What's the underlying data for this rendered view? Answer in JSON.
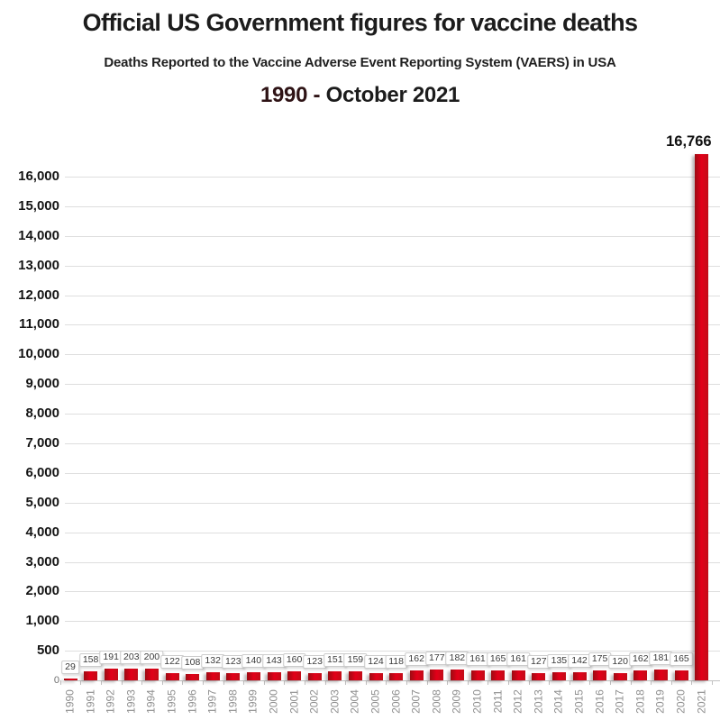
{
  "chart_data": {
    "type": "bar",
    "title": "Official US Government figures for vaccine deaths",
    "subtitle": "Deaths Reported to the Vaccine Adverse Event Reporting System (VAERS) in USA",
    "period_start": "1990",
    "period_separator": " - ",
    "period_end": "October 2021",
    "xlabel": "",
    "ylabel": "",
    "categories": [
      "1990",
      "1991",
      "1992",
      "1993",
      "1994",
      "1995",
      "1996",
      "1997",
      "1998",
      "1999",
      "2000",
      "2001",
      "2002",
      "2003",
      "2004",
      "2005",
      "2006",
      "2007",
      "2008",
      "2009",
      "2010",
      "2011",
      "2012",
      "2013",
      "2014",
      "2015",
      "2016",
      "2017",
      "2018",
      "2019",
      "2020",
      "2021"
    ],
    "values": [
      29,
      158,
      191,
      203,
      200,
      122,
      108,
      132,
      123,
      140,
      143,
      160,
      123,
      151,
      159,
      124,
      118,
      162,
      177,
      182,
      161,
      165,
      161,
      127,
      135,
      142,
      175,
      120,
      162,
      181,
      165,
      16766
    ],
    "bar_value_labels": [
      "29",
      "158",
      "191",
      "203",
      "200",
      "122",
      "108",
      "132",
      "123",
      "140",
      "143",
      "160",
      "123",
      "151",
      "159",
      "124",
      "118",
      "162",
      "177",
      "182",
      "161",
      "165",
      "161",
      "127",
      "135",
      "142",
      "175",
      "120",
      "162",
      "181",
      "165",
      "16,766"
    ],
    "y_axis": {
      "tick_labels": [
        "16,000",
        "15,000",
        "14,000",
        "13,000",
        "12,000",
        "11,000",
        "10,000",
        "9,000",
        "8,000",
        "7,000",
        "6,000",
        "5,000",
        "4,000",
        "3,000",
        "2,000",
        "1,000",
        "500",
        "0"
      ],
      "scale_note": "1,000-unit steps above 1,000; 500-unit steps below 1,000 (non-linear bottom segment)"
    },
    "ylim": [
      0,
      16766
    ],
    "grid": true,
    "legend": false,
    "colors": {
      "bar": "#d40e1a",
      "gridline": "#dedede",
      "axis_line": "#c2c2c2",
      "year_label": "#8e8e8e",
      "value_label_text": "#3a3a3a",
      "value_label_border": "#cccccc",
      "period_accent": "#2e1315",
      "text": "#1c1c1c"
    }
  }
}
